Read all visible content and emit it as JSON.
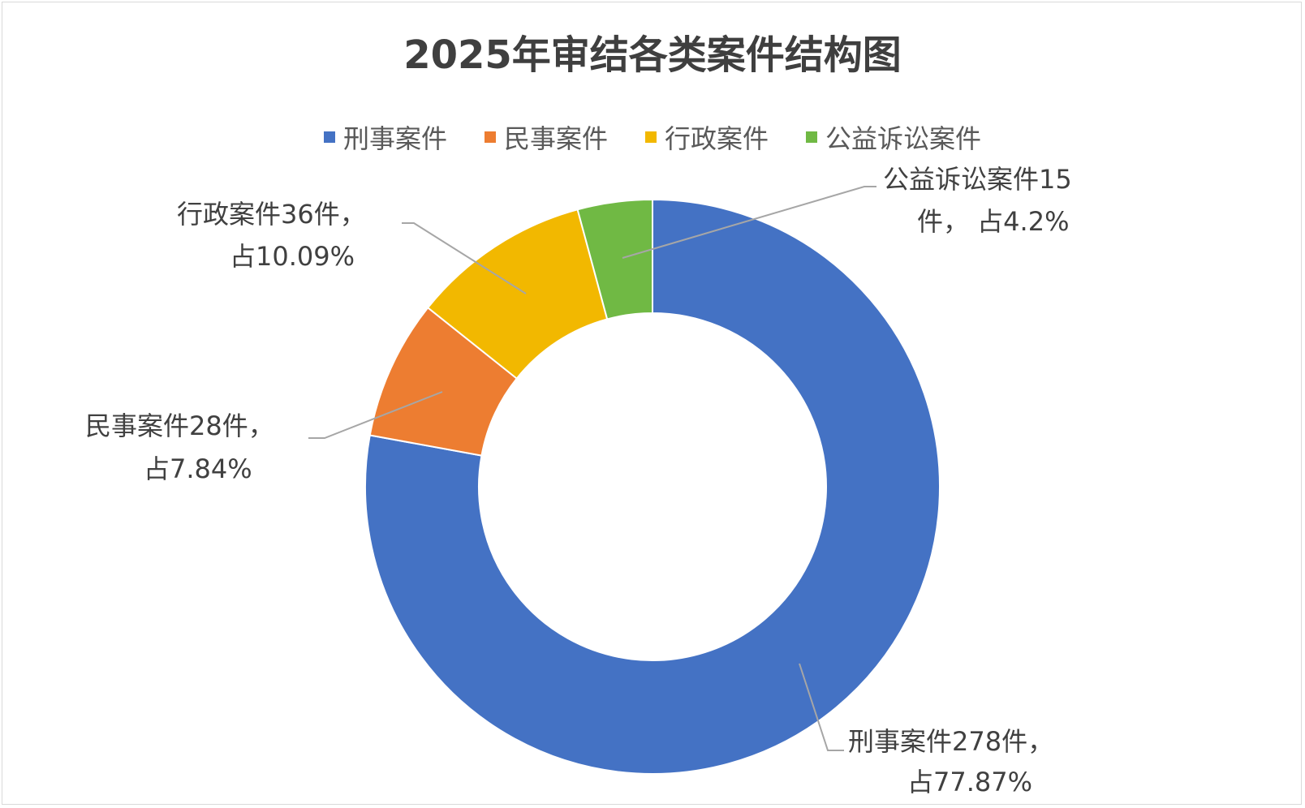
{
  "chart_data": {
    "type": "pie",
    "title": "2025年审结各类案件结构图",
    "categories": [
      "刑事案件",
      "民事案件",
      "行政案件",
      "公益诉讼案件"
    ],
    "values": [
      278,
      28,
      36,
      15
    ],
    "percentages": [
      77.87,
      7.84,
      10.09,
      4.2
    ],
    "colors": [
      "#4472C4",
      "#ED7D31",
      "#F2B800",
      "#70B944"
    ],
    "legend": {
      "position": "top"
    },
    "donut": true,
    "data_labels": [
      {
        "line1": "刑事案件278件，",
        "line2": "占77.87%"
      },
      {
        "line1": "民事案件28件，",
        "line2": "占7.84%"
      },
      {
        "line1": "行政案件36件，",
        "line2": "占10.09%"
      },
      {
        "line1": "公益诉讼案件15",
        "line2": "件， 占4.2%"
      }
    ]
  }
}
